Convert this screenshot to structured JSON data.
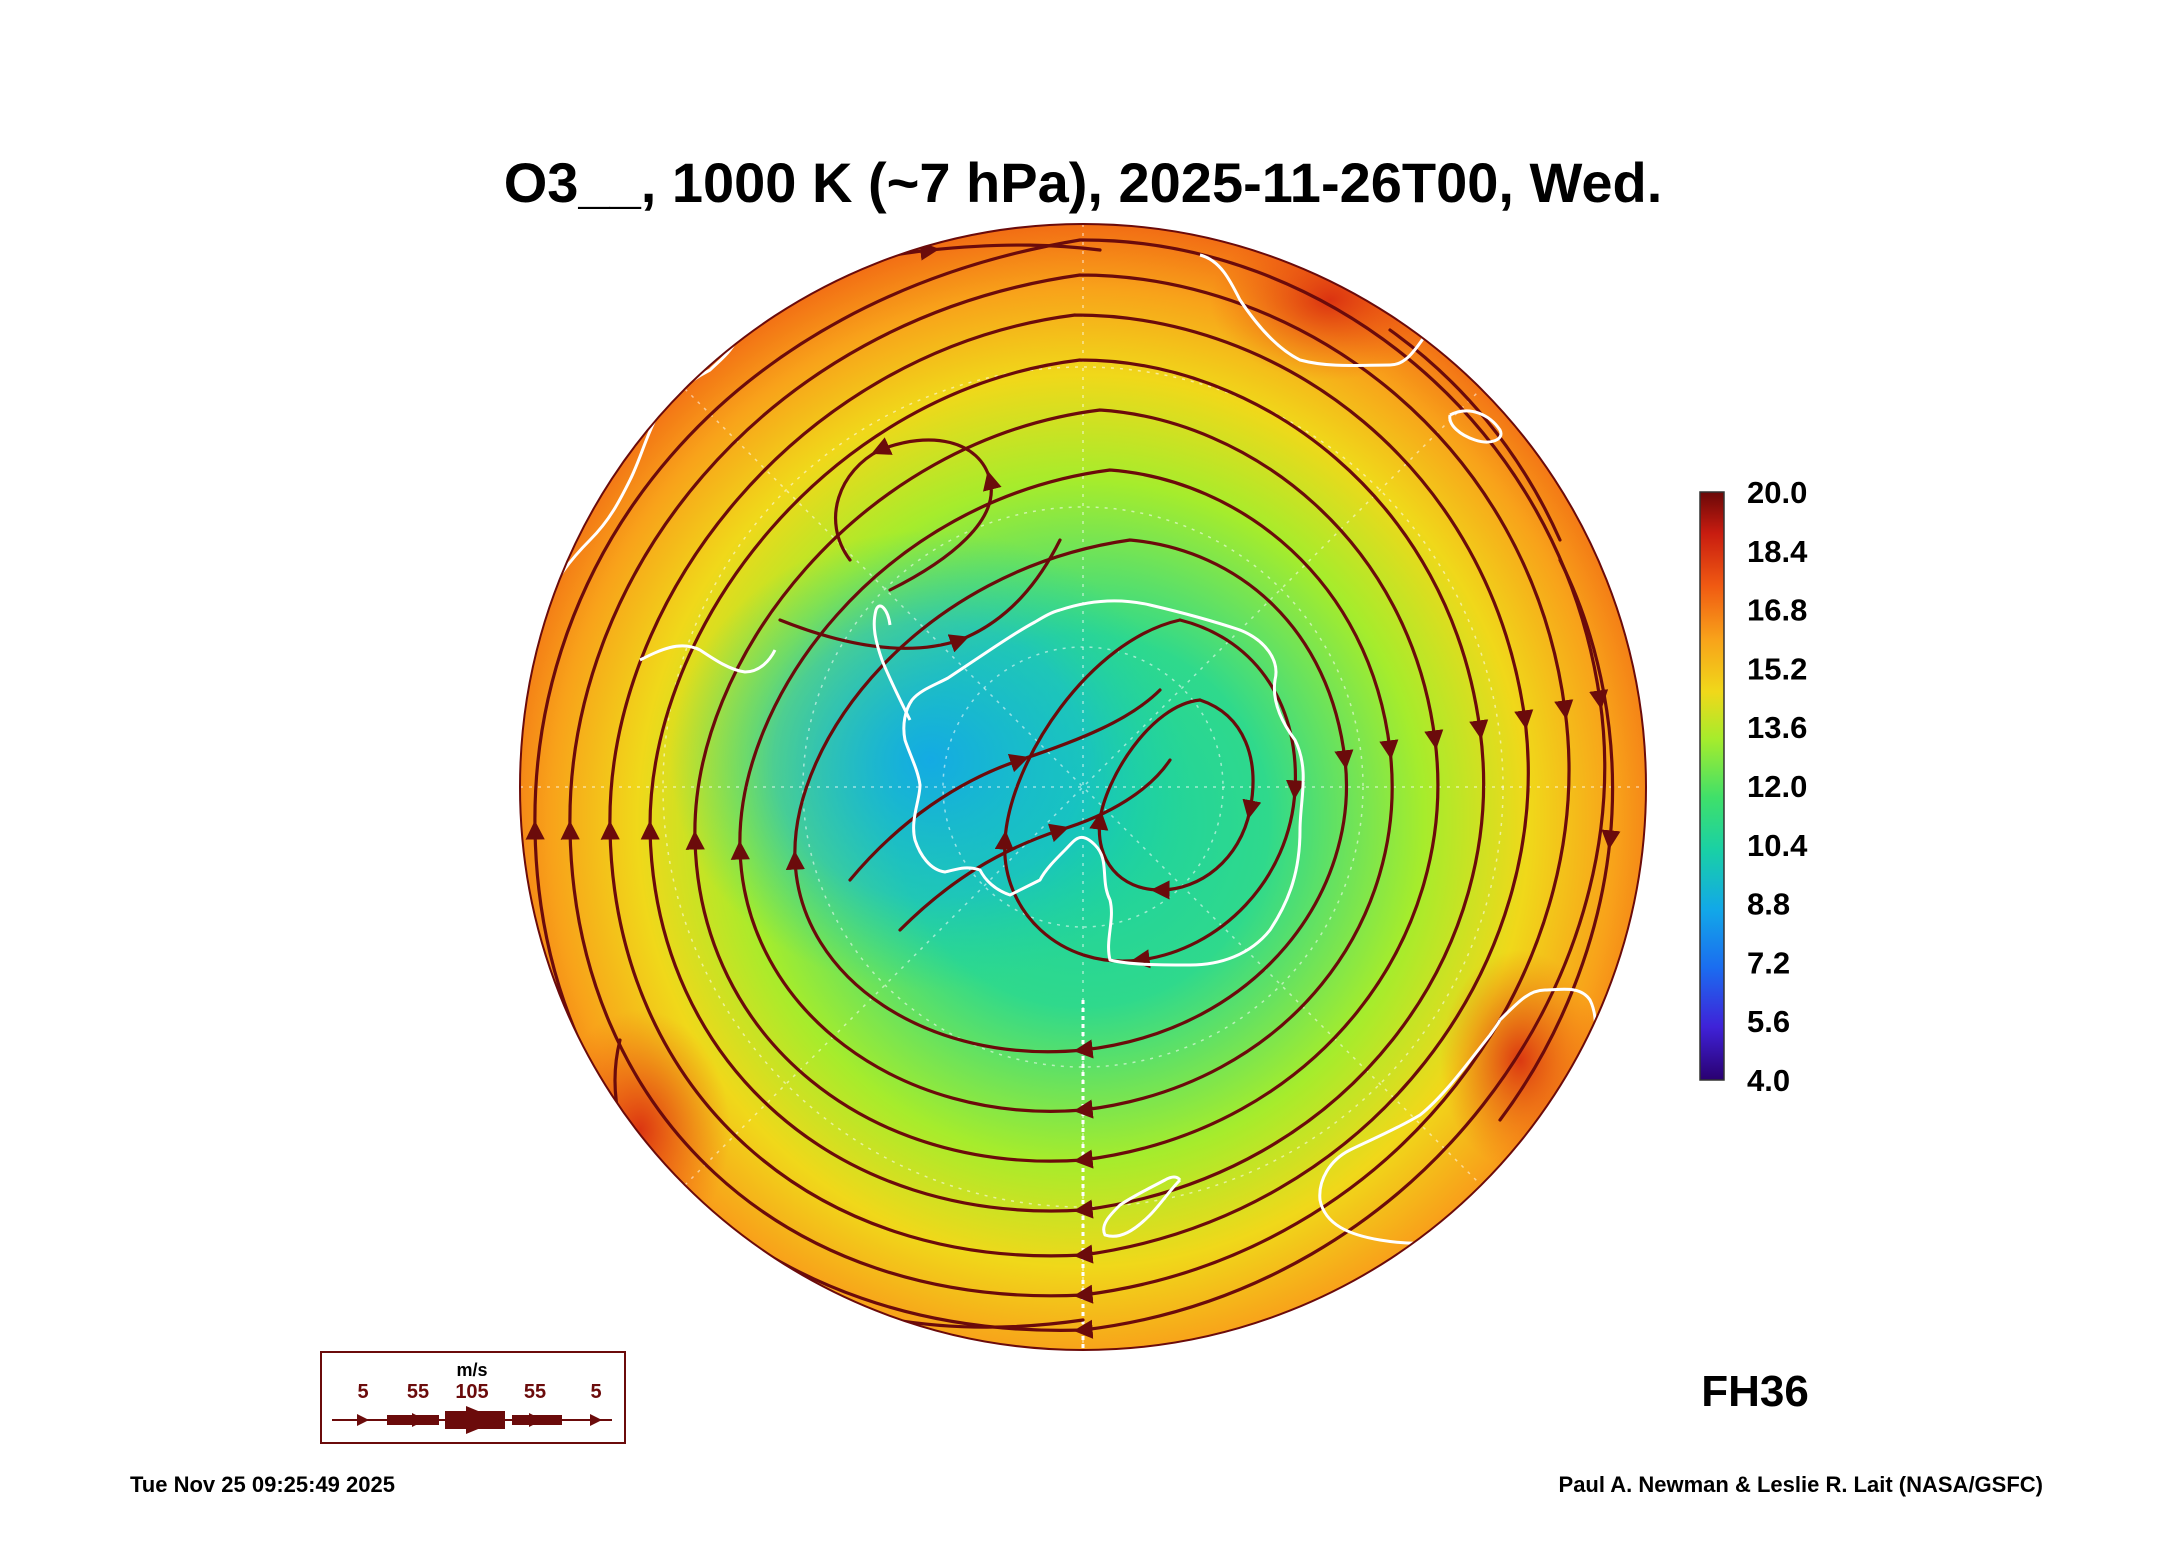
{
  "title": "O3__, 1000 K (~7 hPa), 2025-11-26T00, Wed.",
  "forecast_label": "FH36",
  "footer": {
    "timestamp": "Tue Nov 25 09:25:49 2025",
    "credit": "Paul A. Newman & Leslie R. Lait (NASA/GSFC)"
  },
  "wind_legend": {
    "unit": "m/s",
    "labels": [
      "5",
      "55",
      "105",
      "55",
      "5"
    ]
  },
  "colorbar": {
    "min": 4.0,
    "max": 20.0,
    "ticks": [
      "20.0",
      "18.4",
      "16.8",
      "15.2",
      "13.6",
      "12.0",
      "10.4",
      "8.8",
      "7.2",
      "5.6",
      "4.0"
    ],
    "colors": [
      "#2a0070",
      "#3f22d8",
      "#1b6cf0",
      "#12a8e8",
      "#19d0a6",
      "#3fe06a",
      "#a6ec2c",
      "#f0d81a",
      "#f8a21a",
      "#f05a12",
      "#c81c10",
      "#6a0808"
    ]
  },
  "map": {
    "projection": "south polar stereographic",
    "field": "ozone mixing ratio",
    "streamline_color": "#6b0b0b",
    "coastline_color": "#ffffff"
  }
}
